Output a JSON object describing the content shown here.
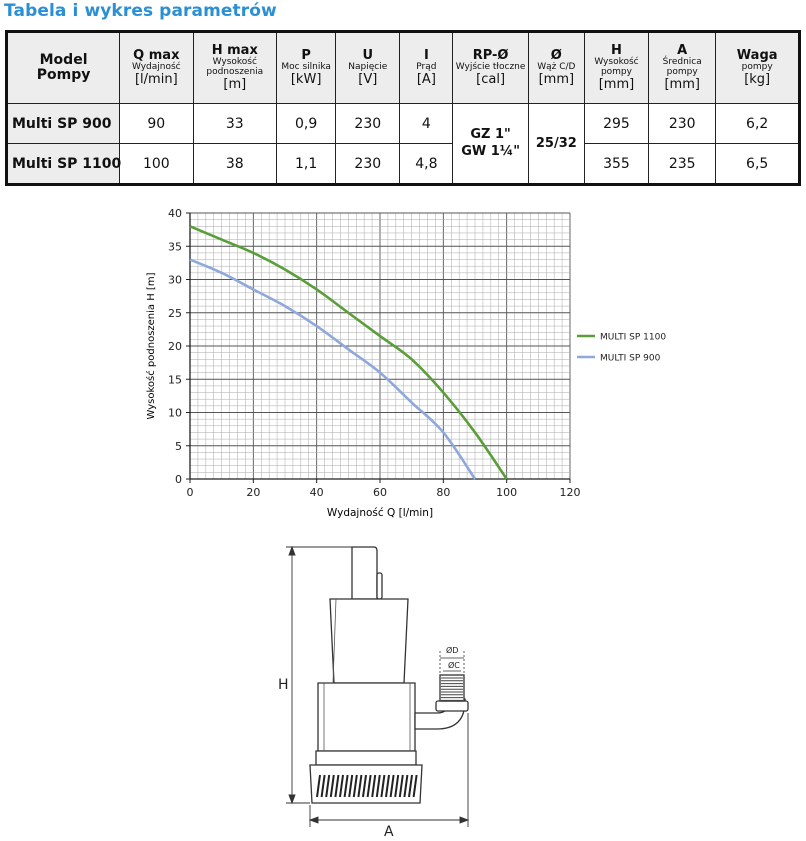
{
  "page_title": "Tabela i wykres parametrów",
  "table": {
    "headers": [
      {
        "line1": "Model",
        "line2": "Pompy"
      },
      {
        "bold": "Q max",
        "small": "Wydajność",
        "unit": "[l/min]"
      },
      {
        "bold": "H max",
        "small": "Wysokość podnoszenia",
        "unit": "[m]"
      },
      {
        "bold": "P",
        "small": "Moc silnika",
        "unit": "[kW]"
      },
      {
        "bold": "U",
        "small": "Napięcie",
        "unit": "[V]"
      },
      {
        "bold": "I",
        "small": "Prąd",
        "unit": "[A]"
      },
      {
        "bold": "RP-Ø",
        "small": "Wyjście tłoczne",
        "unit": "[cal]"
      },
      {
        "bold": "Ø",
        "small": "Wąż C/D",
        "unit": "[mm]"
      },
      {
        "bold": "H",
        "small": "Wysokość pompy",
        "unit": "[mm]"
      },
      {
        "bold": "A",
        "small": "Średnica pompy",
        "unit": "[mm]"
      },
      {
        "bold": "Waga",
        "small": "pompy",
        "unit": "[kg]"
      }
    ],
    "rows": [
      {
        "model": "Multi SP 900",
        "q": "90",
        "h": "33",
        "p": "0,9",
        "u": "230",
        "i": "4",
        "h_pump": "295",
        "a": "230",
        "waga": "6,2"
      },
      {
        "model": "Multi SP 1100",
        "q": "100",
        "h": "38",
        "p": "1,1",
        "u": "230",
        "i": "4,8",
        "h_pump": "355",
        "a": "235",
        "waga": "6,5"
      }
    ],
    "rp_outlet": {
      "line1": "GZ 1\"",
      "line2": "GW 1¼\""
    },
    "hose": "25/32"
  },
  "chart_data": {
    "type": "line",
    "xlabel": "Wydajność Q [l/min]",
    "ylabel": "Wysokość podnoszenia H [m]",
    "xlim": [
      0,
      120
    ],
    "ylim": [
      0,
      40
    ],
    "x_ticks": [
      "0",
      "20",
      "40",
      "60",
      "80",
      "100",
      "120"
    ],
    "y_ticks": [
      "0",
      "5",
      "10",
      "15",
      "20",
      "25",
      "30",
      "35",
      "40"
    ],
    "grid": true,
    "legend_position": "right",
    "series": [
      {
        "name": "MULTI SP 1100",
        "color": "#5a9e3a",
        "x": [
          0,
          10,
          20,
          30,
          40,
          50,
          60,
          70,
          80,
          90,
          100
        ],
        "y": [
          38,
          36,
          34,
          31.5,
          28.5,
          25,
          21.5,
          18,
          13,
          7,
          0
        ]
      },
      {
        "name": "MULTI SP 900",
        "color": "#8fa8dc",
        "x": [
          0,
          10,
          20,
          30,
          40,
          50,
          60,
          70,
          80,
          90
        ],
        "y": [
          33,
          31,
          28.5,
          26,
          23,
          19.5,
          16,
          11.5,
          7,
          0
        ]
      }
    ]
  },
  "drawing": {
    "label_h": "H",
    "label_a": "A",
    "label_od": "ØD",
    "label_oc": "ØC"
  }
}
